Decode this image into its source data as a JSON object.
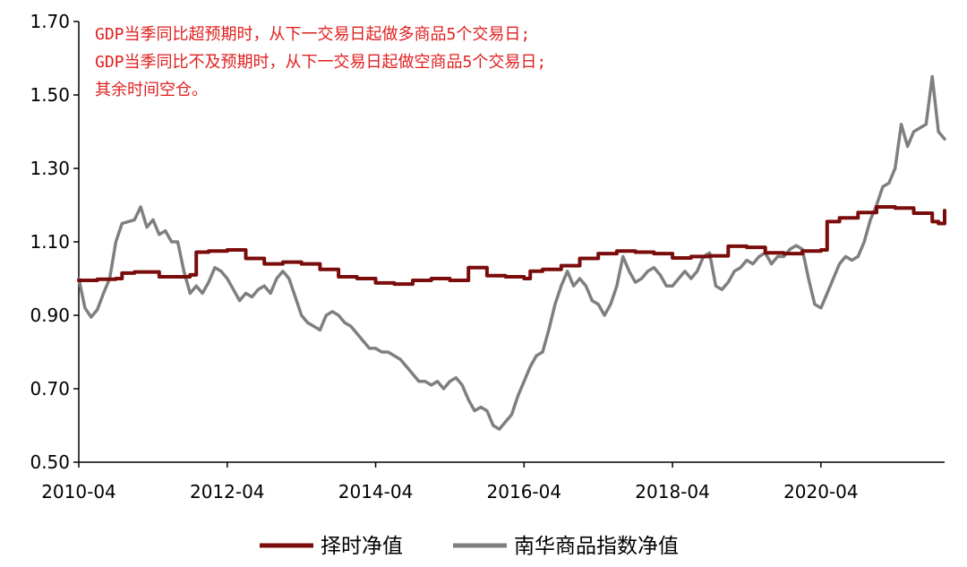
{
  "chart_data": {
    "type": "line",
    "title": "",
    "xlabel": "",
    "ylabel": "",
    "ylim": [
      0.5,
      1.7
    ],
    "xlim": [
      "2010-04",
      "2021-12"
    ],
    "grid": false,
    "legend_position": "bottom",
    "y_ticks": [
      "0.50",
      "0.70",
      "0.90",
      "1.10",
      "1.30",
      "1.50",
      "1.70"
    ],
    "x_ticks": [
      "2010-04",
      "2012-04",
      "2014-04",
      "2016-04",
      "2018-04",
      "2020-04"
    ],
    "annotations": [
      "GDP当季同比超预期时，从下一交易日起做多商品5个交易日;",
      "GDP当季同比不及预期时，从下一交易日起做空商品5个交易日;",
      "其余时间空仓。"
    ],
    "series": [
      {
        "name": "择时净值",
        "color": "#7a0c0c",
        "style": "step",
        "points": [
          [
            "2010-04",
            0.995
          ],
          [
            "2010-07",
            0.998
          ],
          [
            "2010-10",
            1.0
          ],
          [
            "2010-11",
            1.015
          ],
          [
            "2011-01",
            1.018
          ],
          [
            "2011-04",
            1.018
          ],
          [
            "2011-05",
            1.005
          ],
          [
            "2011-10",
            1.01
          ],
          [
            "2011-11",
            1.072
          ],
          [
            "2012-01",
            1.075
          ],
          [
            "2012-04",
            1.078
          ],
          [
            "2012-07",
            1.055
          ],
          [
            "2012-10",
            1.04
          ],
          [
            "2013-01",
            1.045
          ],
          [
            "2013-04",
            1.04
          ],
          [
            "2013-07",
            1.025
          ],
          [
            "2013-10",
            1.005
          ],
          [
            "2014-01",
            1.0
          ],
          [
            "2014-04",
            0.988
          ],
          [
            "2014-07",
            0.985
          ],
          [
            "2014-10",
            0.995
          ],
          [
            "2015-01",
            1.0
          ],
          [
            "2015-04",
            0.995
          ],
          [
            "2015-07",
            1.03
          ],
          [
            "2015-10",
            1.008
          ],
          [
            "2016-01",
            1.005
          ],
          [
            "2016-04",
            1.0
          ],
          [
            "2016-05",
            1.02
          ],
          [
            "2016-07",
            1.025
          ],
          [
            "2016-10",
            1.035
          ],
          [
            "2017-01",
            1.055
          ],
          [
            "2017-04",
            1.068
          ],
          [
            "2017-07",
            1.075
          ],
          [
            "2017-10",
            1.072
          ],
          [
            "2018-01",
            1.068
          ],
          [
            "2018-04",
            1.056
          ],
          [
            "2018-07",
            1.06
          ],
          [
            "2018-10",
            1.062
          ],
          [
            "2019-01",
            1.088
          ],
          [
            "2019-04",
            1.085
          ],
          [
            "2019-07",
            1.07
          ],
          [
            "2019-10",
            1.068
          ],
          [
            "2020-01",
            1.075
          ],
          [
            "2020-04",
            1.078
          ],
          [
            "2020-05",
            1.155
          ],
          [
            "2020-07",
            1.165
          ],
          [
            "2020-10",
            1.18
          ],
          [
            "2021-01",
            1.195
          ],
          [
            "2021-04",
            1.192
          ],
          [
            "2021-07",
            1.178
          ],
          [
            "2021-10",
            1.155
          ],
          [
            "2021-11",
            1.15
          ],
          [
            "2021-12",
            1.185
          ]
        ]
      },
      {
        "name": "南华商品指数净值",
        "color": "#7f7f7f",
        "style": "line",
        "points": [
          [
            "2010-04",
            1.0
          ],
          [
            "2010-05",
            0.92
          ],
          [
            "2010-06",
            0.895
          ],
          [
            "2010-07",
            0.915
          ],
          [
            "2010-08",
            0.96
          ],
          [
            "2010-09",
            1.0
          ],
          [
            "2010-10",
            1.1
          ],
          [
            "2010-11",
            1.15
          ],
          [
            "2011-01",
            1.16
          ],
          [
            "2011-02",
            1.195
          ],
          [
            "2011-03",
            1.14
          ],
          [
            "2011-04",
            1.16
          ],
          [
            "2011-05",
            1.12
          ],
          [
            "2011-06",
            1.13
          ],
          [
            "2011-07",
            1.1
          ],
          [
            "2011-08",
            1.1
          ],
          [
            "2011-09",
            1.02
          ],
          [
            "2011-10",
            0.96
          ],
          [
            "2011-11",
            0.98
          ],
          [
            "2011-12",
            0.96
          ],
          [
            "2012-01",
            0.99
          ],
          [
            "2012-02",
            1.03
          ],
          [
            "2012-03",
            1.02
          ],
          [
            "2012-04",
            1.0
          ],
          [
            "2012-05",
            0.97
          ],
          [
            "2012-06",
            0.94
          ],
          [
            "2012-07",
            0.96
          ],
          [
            "2012-08",
            0.95
          ],
          [
            "2012-09",
            0.97
          ],
          [
            "2012-10",
            0.98
          ],
          [
            "2012-11",
            0.96
          ],
          [
            "2012-12",
            1.0
          ],
          [
            "2013-01",
            1.02
          ],
          [
            "2013-02",
            1.0
          ],
          [
            "2013-03",
            0.95
          ],
          [
            "2013-04",
            0.9
          ],
          [
            "2013-05",
            0.88
          ],
          [
            "2013-06",
            0.87
          ],
          [
            "2013-07",
            0.86
          ],
          [
            "2013-08",
            0.9
          ],
          [
            "2013-09",
            0.91
          ],
          [
            "2013-10",
            0.9
          ],
          [
            "2013-11",
            0.88
          ],
          [
            "2013-12",
            0.87
          ],
          [
            "2014-01",
            0.85
          ],
          [
            "2014-02",
            0.83
          ],
          [
            "2014-03",
            0.81
          ],
          [
            "2014-04",
            0.81
          ],
          [
            "2014-05",
            0.8
          ],
          [
            "2014-06",
            0.8
          ],
          [
            "2014-07",
            0.79
          ],
          [
            "2014-08",
            0.78
          ],
          [
            "2014-09",
            0.76
          ],
          [
            "2014-10",
            0.74
          ],
          [
            "2014-11",
            0.72
          ],
          [
            "2014-12",
            0.72
          ],
          [
            "2015-01",
            0.71
          ],
          [
            "2015-02",
            0.72
          ],
          [
            "2015-03",
            0.7
          ],
          [
            "2015-04",
            0.72
          ],
          [
            "2015-05",
            0.73
          ],
          [
            "2015-06",
            0.71
          ],
          [
            "2015-07",
            0.67
          ],
          [
            "2015-08",
            0.64
          ],
          [
            "2015-09",
            0.65
          ],
          [
            "2015-10",
            0.64
          ],
          [
            "2015-11",
            0.6
          ],
          [
            "2015-12",
            0.59
          ],
          [
            "2016-01",
            0.61
          ],
          [
            "2016-02",
            0.63
          ],
          [
            "2016-03",
            0.68
          ],
          [
            "2016-04",
            0.72
          ],
          [
            "2016-05",
            0.76
          ],
          [
            "2016-06",
            0.79
          ],
          [
            "2016-07",
            0.8
          ],
          [
            "2016-08",
            0.86
          ],
          [
            "2016-09",
            0.93
          ],
          [
            "2016-10",
            0.98
          ],
          [
            "2016-11",
            1.02
          ],
          [
            "2016-12",
            0.98
          ],
          [
            "2017-01",
            1.0
          ],
          [
            "2017-02",
            0.98
          ],
          [
            "2017-03",
            0.94
          ],
          [
            "2017-04",
            0.93
          ],
          [
            "2017-05",
            0.9
          ],
          [
            "2017-06",
            0.93
          ],
          [
            "2017-07",
            0.98
          ],
          [
            "2017-08",
            1.06
          ],
          [
            "2017-09",
            1.02
          ],
          [
            "2017-10",
            0.99
          ],
          [
            "2017-11",
            1.0
          ],
          [
            "2017-12",
            1.02
          ],
          [
            "2018-01",
            1.03
          ],
          [
            "2018-02",
            1.01
          ],
          [
            "2018-03",
            0.98
          ],
          [
            "2018-04",
            0.98
          ],
          [
            "2018-05",
            1.0
          ],
          [
            "2018-06",
            1.02
          ],
          [
            "2018-07",
            1.0
          ],
          [
            "2018-08",
            1.02
          ],
          [
            "2018-09",
            1.06
          ],
          [
            "2018-10",
            1.07
          ],
          [
            "2018-11",
            0.98
          ],
          [
            "2018-12",
            0.97
          ],
          [
            "2019-01",
            0.99
          ],
          [
            "2019-02",
            1.02
          ],
          [
            "2019-03",
            1.03
          ],
          [
            "2019-04",
            1.05
          ],
          [
            "2019-05",
            1.04
          ],
          [
            "2019-06",
            1.06
          ],
          [
            "2019-07",
            1.07
          ],
          [
            "2019-08",
            1.04
          ],
          [
            "2019-09",
            1.06
          ],
          [
            "2019-10",
            1.06
          ],
          [
            "2019-11",
            1.08
          ],
          [
            "2019-12",
            1.09
          ],
          [
            "2020-01",
            1.08
          ],
          [
            "2020-02",
            1.0
          ],
          [
            "2020-03",
            0.93
          ],
          [
            "2020-04",
            0.92
          ],
          [
            "2020-05",
            0.96
          ],
          [
            "2020-06",
            1.0
          ],
          [
            "2020-07",
            1.04
          ],
          [
            "2020-08",
            1.06
          ],
          [
            "2020-09",
            1.05
          ],
          [
            "2020-10",
            1.06
          ],
          [
            "2020-11",
            1.1
          ],
          [
            "2020-12",
            1.16
          ],
          [
            "2021-01",
            1.2
          ],
          [
            "2021-02",
            1.25
          ],
          [
            "2021-03",
            1.26
          ],
          [
            "2021-04",
            1.3
          ],
          [
            "2021-05",
            1.42
          ],
          [
            "2021-06",
            1.36
          ],
          [
            "2021-07",
            1.4
          ],
          [
            "2021-08",
            1.41
          ],
          [
            "2021-09",
            1.42
          ],
          [
            "2021-10",
            1.55
          ],
          [
            "2021-11",
            1.4
          ],
          [
            "2021-12",
            1.38
          ]
        ]
      }
    ]
  }
}
